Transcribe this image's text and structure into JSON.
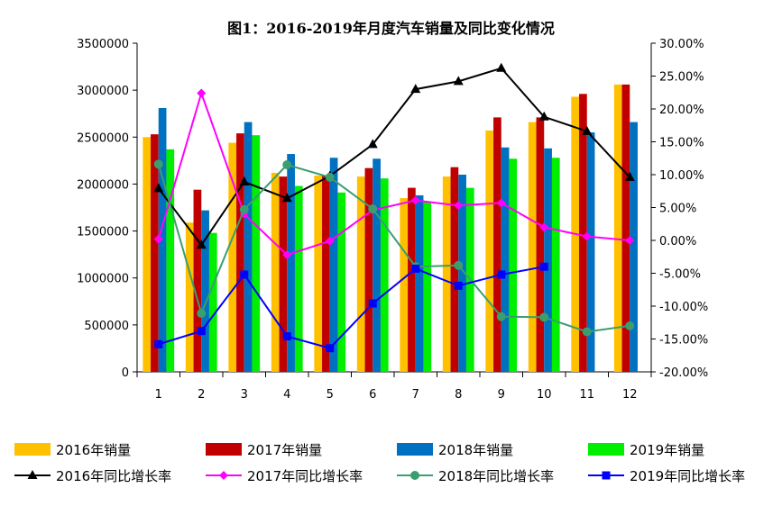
{
  "chart_data": {
    "type": "bar",
    "title": "图1：2016-2019年月度汽车销量及同比变化情况",
    "categories": [
      "1",
      "2",
      "3",
      "4",
      "5",
      "6",
      "7",
      "8",
      "9",
      "10",
      "11",
      "12"
    ],
    "y_left": {
      "ylim": [
        0,
        3500000
      ],
      "ticks": [
        "0",
        "500000",
        "1000000",
        "1500000",
        "2000000",
        "2500000",
        "3000000",
        "3500000"
      ]
    },
    "y_right": {
      "ylim": [
        -20,
        30
      ],
      "ticks": [
        "-20.00%",
        "-15.00%",
        "-10.00%",
        "-5.00%",
        "0.00%",
        "5.00%",
        "10.00%",
        "15.00%",
        "20.00%",
        "25.00%",
        "30.00%"
      ]
    },
    "bar_series": [
      {
        "name": "2016年销量",
        "color": "#FFC000",
        "values": [
          2500000,
          1590000,
          2440000,
          2120000,
          2090000,
          2080000,
          1850000,
          2080000,
          2570000,
          2660000,
          2930000,
          3060000
        ]
      },
      {
        "name": "2017年销量",
        "color": "#C00000",
        "values": [
          2530000,
          1940000,
          2540000,
          2080000,
          2090000,
          2170000,
          1960000,
          2180000,
          2710000,
          2710000,
          2960000,
          3060000
        ]
      },
      {
        "name": "2018年销量",
        "color": "#0070C0",
        "values": [
          2810000,
          1720000,
          2660000,
          2320000,
          2280000,
          2270000,
          1880000,
          2100000,
          2390000,
          2380000,
          2550000,
          2660000
        ]
      },
      {
        "name": "2019年销量",
        "color": "#00EE00",
        "values": [
          2370000,
          1480000,
          2520000,
          1980000,
          1910000,
          2060000,
          1810000,
          1960000,
          2270000,
          2280000,
          null,
          null
        ]
      }
    ],
    "line_series": [
      {
        "name": "2016年同比增长率",
        "color": "#000000",
        "marker": "triangle",
        "values": [
          7.9,
          -0.7,
          8.9,
          6.4,
          9.8,
          14.6,
          23.0,
          24.2,
          26.2,
          18.8,
          16.6,
          9.6
        ]
      },
      {
        "name": "2017年同比增长率",
        "color": "#FF00FF",
        "marker": "diamond",
        "values": [
          0.2,
          22.4,
          4.0,
          -2.2,
          -0.1,
          4.6,
          6.1,
          5.3,
          5.7,
          2.0,
          0.6,
          0.0
        ]
      },
      {
        "name": "2018年同比增长率",
        "color": "#3A9E6E",
        "marker": "circle",
        "values": [
          11.6,
          -11.1,
          4.7,
          11.5,
          9.6,
          4.8,
          -4.0,
          -3.8,
          -11.6,
          -11.7,
          -13.9,
          -13.0
        ]
      },
      {
        "name": "2019年同比增长率",
        "color": "#0000FF",
        "marker": "square",
        "values": [
          -15.8,
          -13.8,
          -5.2,
          -14.6,
          -16.4,
          -9.6,
          -4.3,
          -6.9,
          -5.2,
          -4.0,
          null,
          null
        ]
      }
    ]
  }
}
